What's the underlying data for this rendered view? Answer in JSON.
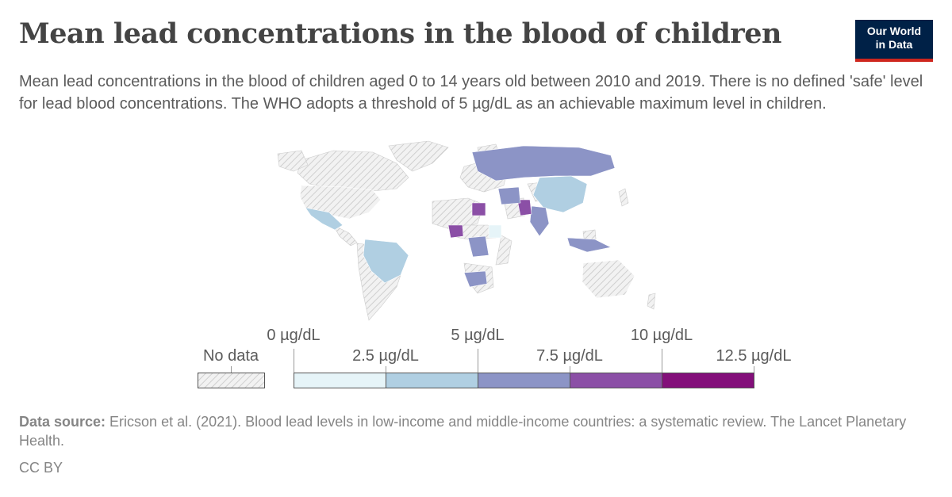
{
  "title": "Mean lead concentrations in the blood of children",
  "subtitle": "Mean lead concentrations in the blood of children aged 0 to 14 years old between 2010 and 2019. There is no defined 'safe' level for lead blood concentrations. The WHO adopts a threshold of 5 µg/dL as an achievable maximum level in children.",
  "logo": {
    "line1": "Our World",
    "line2": "in Data"
  },
  "legend": {
    "no_data": "No data",
    "ticks_upper": [
      "0 µg/dL",
      "5 µg/dL",
      "10 µg/dL"
    ],
    "ticks_lower": [
      "2.5 µg/dL",
      "7.5 µg/dL",
      "12.5 µg/dL"
    ],
    "bins": [
      {
        "range": "0–2.5",
        "color": "#e6f4f8"
      },
      {
        "range": "2.5–5",
        "color": "#b0cfe2"
      },
      {
        "range": "5–7.5",
        "color": "#8c94c6"
      },
      {
        "range": "7.5–10",
        "color": "#8b4fa6"
      },
      {
        "range": "10–12.5",
        "color": "#830f7a"
      }
    ],
    "no_data_color": "#dddddd"
  },
  "map_regions": [
    {
      "name": "United States",
      "bin": "none"
    },
    {
      "name": "Mexico",
      "bin": "2.5–5"
    },
    {
      "name": "Brazil",
      "bin": "2.5–5"
    },
    {
      "name": "Russia",
      "bin": "5–7.5"
    },
    {
      "name": "China",
      "bin": "2.5–5"
    },
    {
      "name": "India",
      "bin": "5–7.5"
    },
    {
      "name": "Pakistan",
      "bin": "7.5–10"
    },
    {
      "name": "Egypt",
      "bin": "7.5–10"
    },
    {
      "name": "Nigeria",
      "bin": "7.5–10"
    },
    {
      "name": "DR Congo",
      "bin": "5–7.5"
    },
    {
      "name": "South Africa",
      "bin": "5–7.5"
    },
    {
      "name": "Indonesia",
      "bin": "5–7.5"
    },
    {
      "name": "Iran",
      "bin": "5–7.5"
    },
    {
      "name": "Ethiopia",
      "bin": "0–2.5"
    },
    {
      "name": "Australia",
      "bin": "none"
    }
  ],
  "footer": {
    "source_label": "Data source:",
    "source_text": " Ericson et al. (2021). Blood lead levels in low-income and middle-income countries: a systematic review. The Lancet Planetary Health.",
    "license": "CC BY"
  }
}
